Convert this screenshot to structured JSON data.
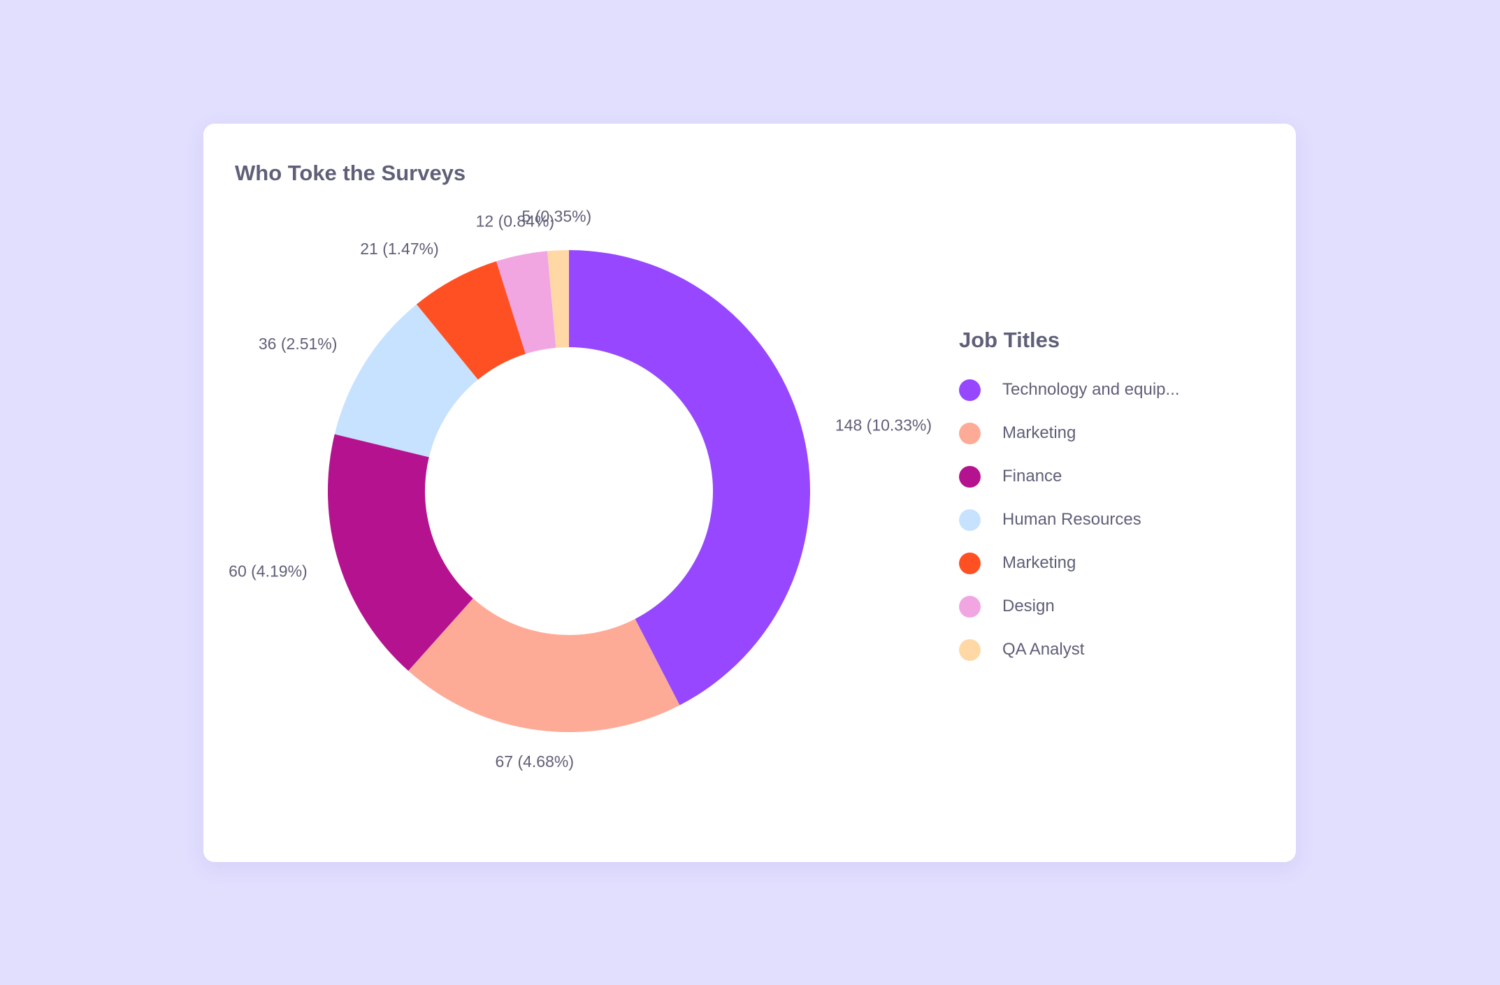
{
  "card": {
    "title": "Who Toke the Surveys"
  },
  "chart_data": {
    "type": "pie",
    "style": "donut",
    "title": "Who Toke the Surveys",
    "start_angle_deg": 0,
    "direction": "clockwise",
    "legend": {
      "title": "Job Titles",
      "placement": "right"
    },
    "slices": [
      {
        "name": "Technology and equip...",
        "value": 148,
        "label": "148 (10.33%)",
        "color": "#9747FF"
      },
      {
        "name": "Marketing",
        "value": 67,
        "label": "67 (4.68%)",
        "color": "#FDAB97"
      },
      {
        "name": "Finance",
        "value": 60,
        "label": "60 (4.19%)",
        "color": "#B5128F"
      },
      {
        "name": "Human Resources",
        "value": 36,
        "label": "36 (2.51%)",
        "color": "#C6E2FF"
      },
      {
        "name": "Marketing",
        "value": 21,
        "label": "21 (1.47%)",
        "color": "#FF5023"
      },
      {
        "name": "Design",
        "value": 12,
        "label": "12 (0.84%)",
        "color": "#F1A6E2"
      },
      {
        "name": "QA Analyst",
        "value": 5,
        "label": "5 (0.35%)",
        "color": "#FFD8A5"
      }
    ]
  }
}
